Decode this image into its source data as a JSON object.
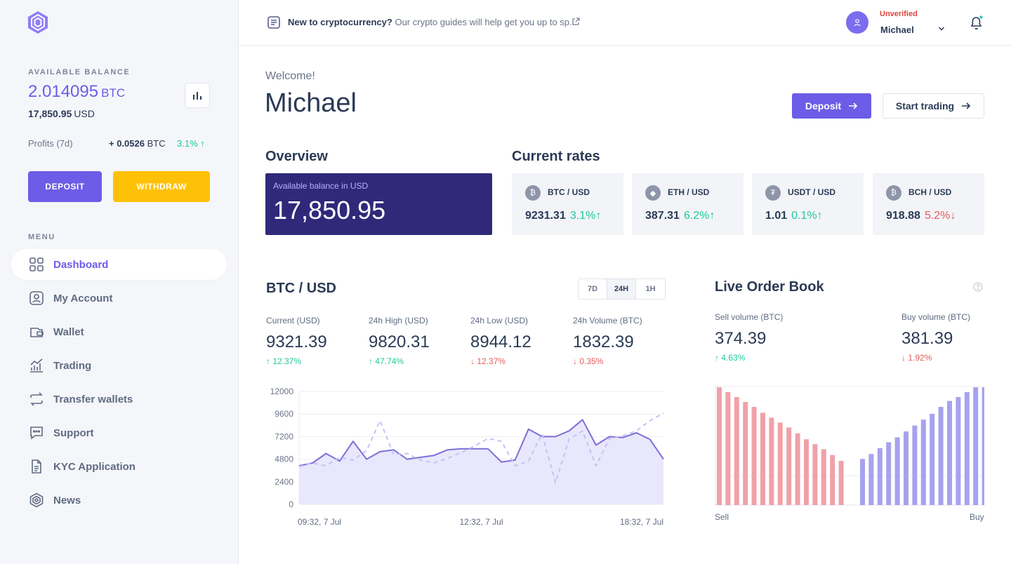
{
  "sidebar": {
    "balance_label": "AVAILABLE BALANCE",
    "balance_btc": "2.014095",
    "btc_unit": "BTC",
    "balance_usd": "17,850.95",
    "usd_unit": "USD",
    "profits_label": "Profits (7d)",
    "profits_value": "+ 0.0526",
    "profits_unit": "BTC",
    "profits_pct": "3.1% ↑",
    "deposit_label": "DEPOSIT",
    "withdraw_label": "WITHDRAW",
    "menu_label": "MENU",
    "menu": [
      {
        "label": "Dashboard",
        "icon": "grid-icon",
        "active": true
      },
      {
        "label": "My Account",
        "icon": "user-icon",
        "active": false
      },
      {
        "label": "Wallet",
        "icon": "wallet-icon",
        "active": false
      },
      {
        "label": "Trading",
        "icon": "trading-icon",
        "active": false
      },
      {
        "label": "Transfer wallets",
        "icon": "transfer-icon",
        "active": false
      },
      {
        "label": "Support",
        "icon": "chat-icon",
        "active": false
      },
      {
        "label": "KYC Application",
        "icon": "document-icon",
        "active": false
      },
      {
        "label": "News",
        "icon": "news-icon",
        "active": false
      }
    ]
  },
  "topbar": {
    "guide_bold": "New to cryptocurrency?",
    "guide_text": "Our crypto guides will help get you up to sp...",
    "status": "Unverified",
    "username": "Michael"
  },
  "hero": {
    "welcome": "Welcome!",
    "name": "Michael",
    "deposit_label": "Deposit",
    "trade_label": "Start trading"
  },
  "overview": {
    "title": "Overview",
    "card_label": "Available balance in USD",
    "card_value": "17,850.95"
  },
  "rates": {
    "title": "Current rates",
    "items": [
      {
        "pair": "BTC / USD",
        "price": "9231.31",
        "change": "3.1%↑",
        "dir": "up",
        "symbol": "₿"
      },
      {
        "pair": "ETH / USD",
        "price": "387.31",
        "change": "6.2%↑",
        "dir": "up",
        "symbol": "◆"
      },
      {
        "pair": "USDT / USD",
        "price": "1.01",
        "change": "0.1%↑",
        "dir": "up",
        "symbol": "₮"
      },
      {
        "pair": "BCH / USD",
        "price": "918.88",
        "change": "5.2%↓",
        "dir": "down",
        "symbol": "₿"
      }
    ]
  },
  "btc_chart": {
    "title": "BTC / USD",
    "timeframes": [
      "7D",
      "24H",
      "1H"
    ],
    "active_timeframe": "24H",
    "stats": [
      {
        "label": "Current (USD)",
        "value": "9321.39",
        "change": "↑ 12.37%",
        "dir": "up"
      },
      {
        "label": "24h High (USD)",
        "value": "9820.31",
        "change": "↑ 47.74%",
        "dir": "up"
      },
      {
        "label": "24h Low (USD)",
        "value": "8944.12",
        "change": "↓ 12.37%",
        "dir": "down"
      },
      {
        "label": "24h Volume (BTC)",
        "value": "1832.39",
        "change": "↓ 0.35%",
        "dir": "down"
      }
    ]
  },
  "order_book": {
    "title": "Live Order Book",
    "sell_label": "Sell volume (BTC)",
    "sell_value": "374.39",
    "sell_change": "↑ 4.63%",
    "buy_label": "Buy volume (BTC)",
    "buy_value": "381.39",
    "buy_change": "↓ 1.92%",
    "axis_sell": "Sell",
    "axis_buy": "Buy"
  },
  "chart_data": [
    {
      "type": "line",
      "x_labels": [
        "09:32, 7 Jul",
        "12:32, 7 Jul",
        "18:32, 7 Jul"
      ],
      "y_ticks": [
        0,
        2400,
        4800,
        7200,
        9600,
        12000
      ],
      "ylim": [
        0,
        12000
      ],
      "series": [
        {
          "values": [
            4100,
            4400,
            5400,
            4600,
            6700,
            4800,
            5600,
            5800,
            4800,
            5000,
            5200,
            5800,
            5900,
            5900,
            5900,
            4500,
            4700,
            8000,
            7200,
            7200,
            7800,
            9000,
            6300,
            7200,
            7100,
            7600,
            6900,
            4800
          ],
          "style": "solid"
        },
        {
          "values": [
            4000,
            4400,
            4100,
            5000,
            4700,
            5700,
            8900,
            5300,
            5400,
            4700,
            4400,
            4900,
            5500,
            6200,
            7000,
            6700,
            4100,
            4600,
            7500,
            2300,
            6900,
            7800,
            4100,
            7000,
            7300,
            7800,
            8900,
            9700
          ],
          "style": "dashed"
        }
      ]
    },
    {
      "type": "bar",
      "series": [
        {
          "name": "Sell",
          "values": [
            12,
            11.5,
            11,
            10.5,
            10,
            9.4,
            8.9,
            8.4,
            7.9,
            7.3,
            6.7,
            6.2,
            5.7,
            5.1,
            4.5
          ]
        },
        {
          "name": "Buy",
          "values": [
            4.7,
            5.2,
            5.8,
            6.4,
            6.9,
            7.5,
            8.1,
            8.7,
            9.3,
            10,
            10.6,
            11,
            11.5,
            12,
            12
          ]
        }
      ]
    }
  ]
}
